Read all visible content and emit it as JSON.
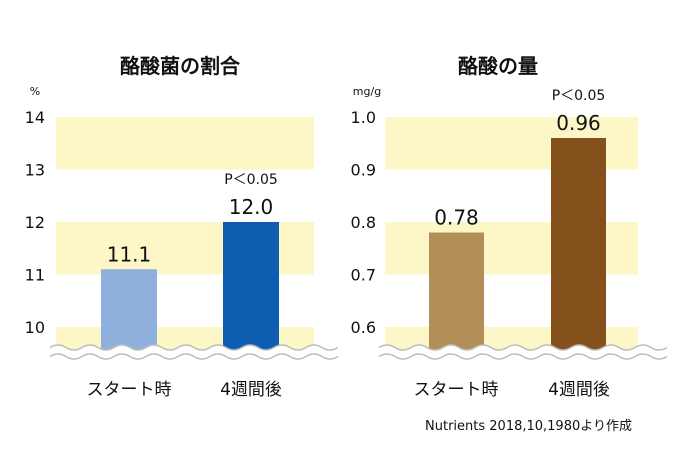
{
  "colors": {
    "band": "#fdf7c8",
    "background": "#ffffff",
    "text": "#111111",
    "wave": "#bdbdbd"
  },
  "chart_data": [
    {
      "type": "bar",
      "title": "酪酸菌の割合",
      "ylabel": "%",
      "ylim": [
        9.5,
        14
      ],
      "y_ticks": [
        10,
        11,
        12,
        13,
        14
      ],
      "y_tick_labels": [
        "10",
        "11",
        "12",
        "13",
        "14"
      ],
      "y_bands": [
        [
          9.5,
          10
        ],
        [
          11,
          12
        ],
        [
          13,
          14
        ]
      ],
      "axis_break": true,
      "grid": false,
      "categories": [
        "スタート時",
        "4週間後"
      ],
      "values": [
        11.1,
        12.0
      ],
      "value_labels": [
        "11.1",
        "12.0"
      ],
      "bar_colors": [
        "#8fb0dc",
        "#0d5db0"
      ],
      "annotations": [
        {
          "category_index": 1,
          "text": "P＜0.05"
        }
      ]
    },
    {
      "type": "bar",
      "title": "酪酸の量",
      "ylabel": "mg/g",
      "ylim": [
        0.55,
        1.0
      ],
      "y_ticks": [
        0.6,
        0.7,
        0.8,
        0.9,
        1.0
      ],
      "y_tick_labels": [
        "0.6",
        "0.7",
        "0.8",
        "0.9",
        "1.0"
      ],
      "y_bands": [
        [
          0.55,
          0.6
        ],
        [
          0.7,
          0.8
        ],
        [
          0.9,
          1.0
        ]
      ],
      "axis_break": true,
      "grid": false,
      "categories": [
        "スタート時",
        "4週間後"
      ],
      "values": [
        0.78,
        0.96
      ],
      "value_labels": [
        "0.78",
        "0.96"
      ],
      "bar_colors": [
        "#b48e58",
        "#84501c"
      ],
      "annotations": [
        {
          "category_index": 1,
          "text": "P＜0.05"
        }
      ]
    }
  ],
  "source_note": "Nutrients 2018,10,1980より作成"
}
